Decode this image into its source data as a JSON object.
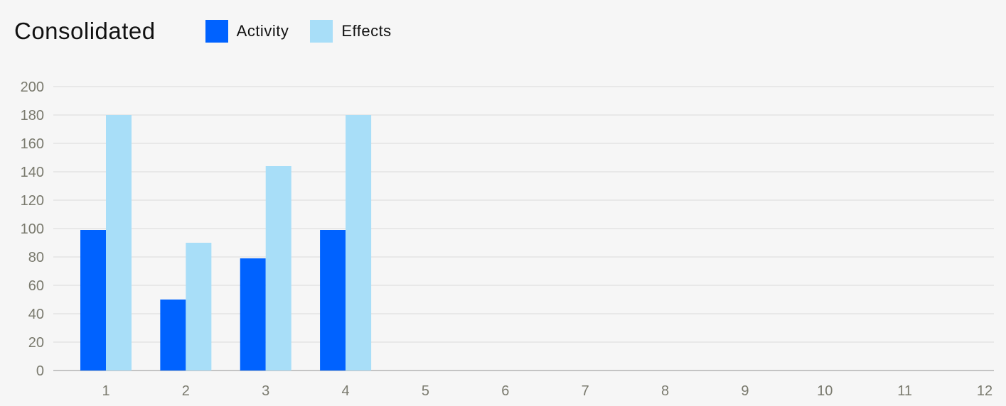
{
  "chart_data": {
    "type": "bar",
    "title": "Consolidated",
    "xlabel": "",
    "ylabel": "",
    "categories": [
      "1",
      "2",
      "3",
      "4",
      "5",
      "6",
      "7",
      "8",
      "9",
      "10",
      "11",
      "12"
    ],
    "series": [
      {
        "name": "Activity",
        "color": "#0062ff",
        "values": [
          99,
          50,
          79,
          99,
          null,
          null,
          null,
          null,
          null,
          null,
          null,
          null
        ]
      },
      {
        "name": "Effects",
        "color": "#a8def8",
        "values": [
          180,
          90,
          144,
          180,
          null,
          null,
          null,
          null,
          null,
          null,
          null,
          null
        ]
      }
    ],
    "ylim": [
      0,
      200
    ],
    "yticks": [
      0,
      20,
      40,
      60,
      80,
      100,
      120,
      140,
      160,
      180,
      200
    ],
    "grid": true,
    "legend_position": "top"
  }
}
